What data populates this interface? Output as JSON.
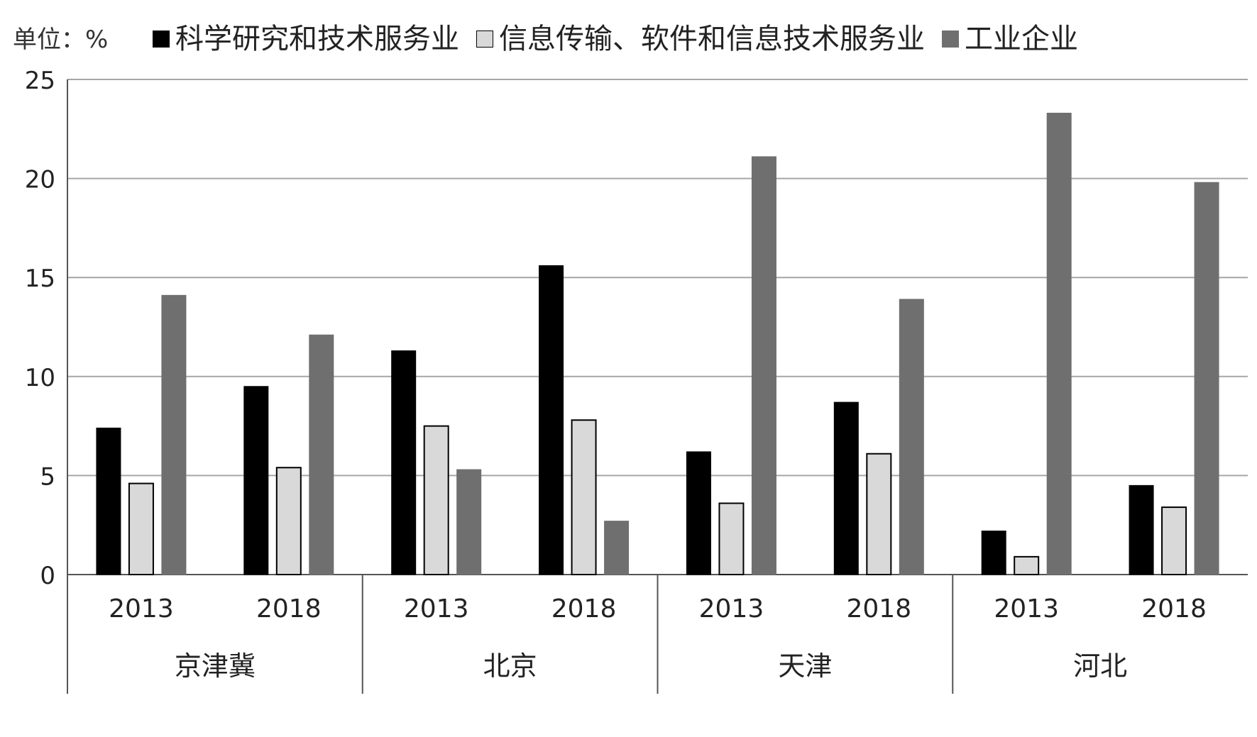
{
  "chart_data": {
    "type": "bar",
    "unit_label": "单位：%",
    "ylim": [
      0,
      25
    ],
    "yticks": [
      "0",
      "5",
      "10",
      "15",
      "20",
      "25"
    ],
    "grid": true,
    "legend_position": "top",
    "groups": [
      {
        "label": "京津冀",
        "categories": [
          "2013",
          "2018"
        ]
      },
      {
        "label": "北京",
        "categories": [
          "2013",
          "2018"
        ]
      },
      {
        "label": "天津",
        "categories": [
          "2013",
          "2018"
        ]
      },
      {
        "label": "河北",
        "categories": [
          "2013",
          "2018"
        ]
      }
    ],
    "series": [
      {
        "name": "科学研究和技术服务业",
        "color": "#000000",
        "values": [
          7.4,
          9.5,
          11.3,
          15.6,
          6.2,
          8.7,
          2.2,
          4.5
        ]
      },
      {
        "name": "信息传输、软件和信息技术服务业",
        "color": "#d9d9d9",
        "values": [
          4.6,
          5.4,
          7.5,
          7.8,
          3.6,
          6.1,
          0.9,
          3.4
        ]
      },
      {
        "name": "工业企业",
        "color": "#6f6f6f",
        "values": [
          14.1,
          12.1,
          5.3,
          2.7,
          21.1,
          13.9,
          23.3,
          19.8
        ]
      }
    ]
  }
}
